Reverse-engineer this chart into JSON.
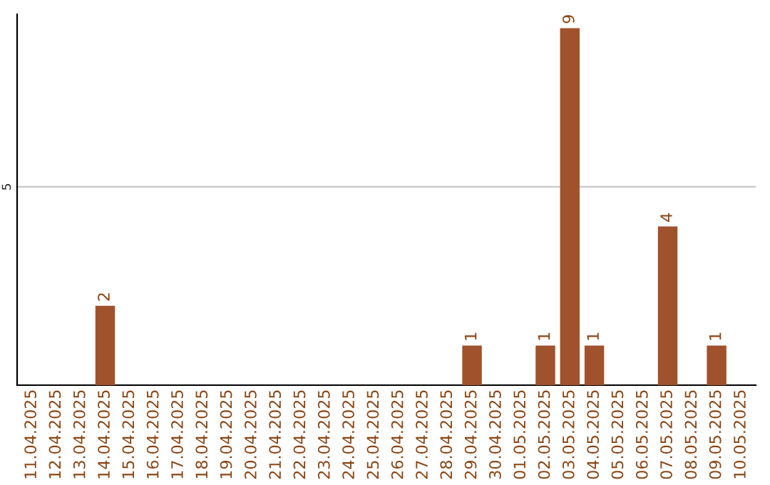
{
  "chart_data": {
    "type": "bar",
    "categories": [
      "11.04.2025",
      "12.04.2025",
      "13.04.2025",
      "14.04.2025",
      "15.04.2025",
      "16.04.2025",
      "17.04.2025",
      "18.04.2025",
      "19.04.2025",
      "20.04.2025",
      "21.04.2025",
      "22.04.2025",
      "23.04.2025",
      "24.04.2025",
      "25.04.2025",
      "26.04.2025",
      "27.04.2025",
      "28.04.2025",
      "29.04.2025",
      "30.04.2025",
      "01.05.2025",
      "02.05.2025",
      "03.05.2025",
      "04.05.2025",
      "05.05.2025",
      "06.05.2025",
      "07.05.2025",
      "08.05.2025",
      "09.05.2025",
      "10.05.2025"
    ],
    "values": [
      0,
      0,
      0,
      2,
      0,
      0,
      0,
      0,
      0,
      0,
      0,
      0,
      0,
      0,
      0,
      0,
      0,
      0,
      1,
      0,
      0,
      1,
      9,
      1,
      0,
      0,
      4,
      0,
      1,
      0
    ],
    "value_labels": [
      null,
      null,
      null,
      "2",
      null,
      null,
      null,
      null,
      null,
      null,
      null,
      null,
      null,
      null,
      null,
      null,
      null,
      null,
      "1",
      null,
      null,
      "1",
      "9",
      "1",
      null,
      null,
      "4",
      null,
      "1",
      null
    ],
    "color": "#a0522d",
    "ylim": [
      0,
      9.35
    ],
    "yticks": [
      5
    ],
    "grid": "y",
    "legend": false
  }
}
